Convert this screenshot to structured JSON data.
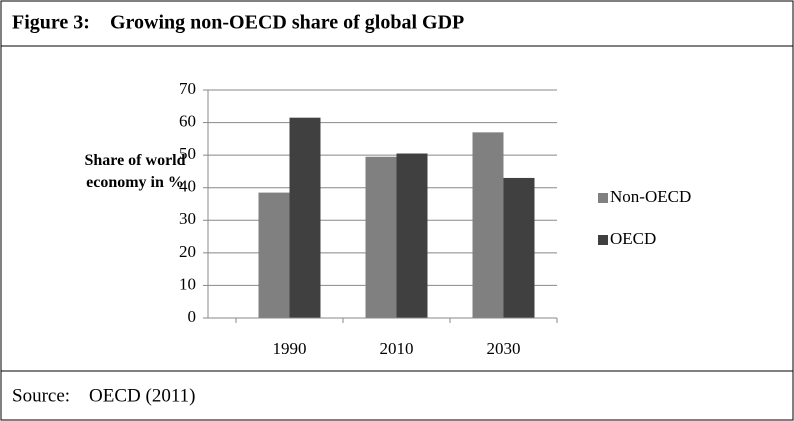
{
  "figure_title": "Figure 3:    Growing non-OECD share of global GDP",
  "source": "Source:    OECD (2011)",
  "chart_data": {
    "type": "bar",
    "ylabel": "Share of world economy in %",
    "categories": [
      "1990",
      "2010",
      "2030"
    ],
    "series": [
      {
        "name": "Non-OECD",
        "color": "#808080",
        "values": [
          38.5,
          49.5,
          57
        ]
      },
      {
        "name": "OECD",
        "color": "#404040",
        "values": [
          61.5,
          50.5,
          43
        ]
      }
    ],
    "ylim": [
      0,
      70
    ],
    "yticks": [
      0,
      10,
      20,
      30,
      40,
      50,
      60,
      70
    ],
    "grid": true,
    "legend": "right"
  }
}
